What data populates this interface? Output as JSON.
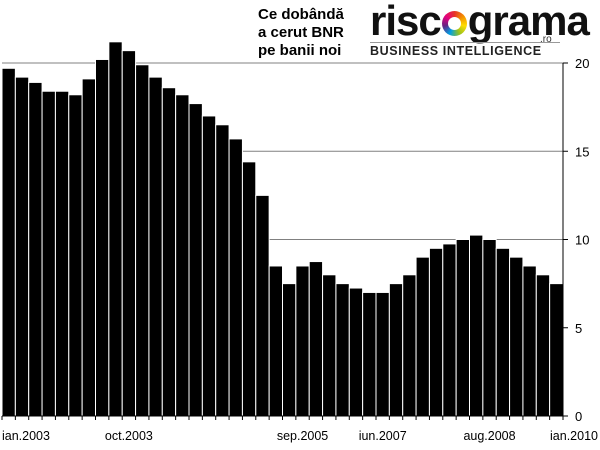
{
  "header": {
    "title_lines": [
      "Ce dobândă",
      "a cerut BNR",
      "pe banii noi"
    ]
  },
  "logo": {
    "word_left": "risc",
    "word_right": "grama",
    "tld": ".ro",
    "tagline": "BUSINESS INTELLIGENCE",
    "ring_colors": [
      "#e6332a",
      "#f39200",
      "#ffdd00",
      "#95c11f",
      "#00a0e3",
      "#662483",
      "#e5007e"
    ]
  },
  "colors": {
    "bar": "#000000",
    "grid": "#808080",
    "background": "#ffffff"
  },
  "chart_data": {
    "type": "bar",
    "grid": true,
    "ylim": [
      0,
      20
    ],
    "yticks": [
      0,
      5,
      10,
      15,
      20
    ],
    "y_axis_side": "right",
    "x_tick_labels": [
      {
        "label": "ian.2003",
        "index": 0
      },
      {
        "label": "oct.2003",
        "index": 9
      },
      {
        "label": "sep.2005",
        "index": 22
      },
      {
        "label": "iun.2007",
        "index": 28
      },
      {
        "label": "aug.2008",
        "index": 36
      },
      {
        "label": "ian.2010",
        "index": 42
      }
    ],
    "values": [
      19.7,
      19.2,
      18.9,
      18.4,
      18.4,
      18.2,
      19.1,
      20.2,
      21.2,
      20.7,
      19.9,
      19.2,
      18.6,
      18.2,
      17.7,
      17.0,
      16.5,
      15.7,
      14.4,
      12.5,
      8.5,
      7.5,
      8.5,
      8.75,
      8.0,
      7.5,
      7.25,
      7.0,
      7.0,
      7.5,
      8.0,
      9.0,
      9.5,
      9.75,
      10.0,
      10.25,
      10.0,
      9.5,
      9.0,
      8.5,
      8.0,
      7.5
    ]
  }
}
